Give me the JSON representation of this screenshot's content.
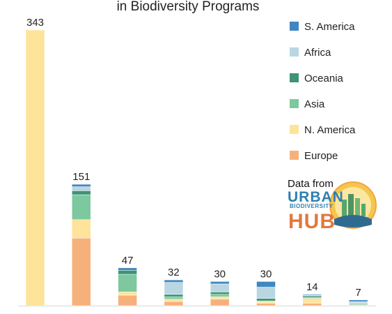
{
  "chart_data": {
    "type": "bar",
    "stacked": true,
    "title": "in Biodiversity Programs",
    "series": [
      {
        "name": "S. America",
        "color": "#3f87c1",
        "values": [
          0,
          3,
          3,
          3,
          3,
          7,
          1,
          2
        ]
      },
      {
        "name": "Africa",
        "color": "#b9d7e2",
        "values": [
          0,
          5,
          0,
          15,
          10,
          14,
          1,
          2
        ]
      },
      {
        "name": "Oceania",
        "color": "#3e9475",
        "values": [
          0,
          5,
          5,
          3,
          3,
          3,
          2,
          1
        ]
      },
      {
        "name": "Asia",
        "color": "#7ec89f",
        "values": [
          0,
          31,
          22,
          3,
          3,
          1,
          1,
          1
        ]
      },
      {
        "name": "N. America",
        "color": "#fde49a",
        "values": [
          343,
          23,
          4,
          3,
          3,
          2,
          6,
          1
        ]
      },
      {
        "name": "Europe",
        "color": "#f6b07c",
        "values": [
          0,
          84,
          13,
          5,
          8,
          3,
          3,
          0
        ]
      }
    ],
    "totals": [
      343,
      151,
      47,
      32,
      30,
      30,
      14,
      7
    ],
    "ylim": [
      0,
      343
    ],
    "legend_position": "top-right",
    "grid": false
  },
  "source": {
    "label": "Data from",
    "logo_line1": "URBAN",
    "logo_line2": "BIODIVERSITY",
    "logo_line3": "HUB"
  }
}
